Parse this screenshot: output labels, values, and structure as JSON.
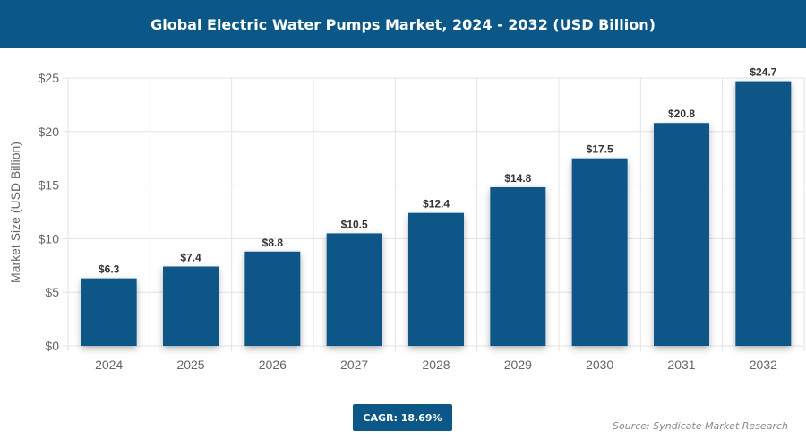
{
  "chart_data": {
    "type": "bar",
    "title": "Global Electric Water Pumps Market, 2024 - 2032 (USD Billion)",
    "xlabel": "",
    "ylabel": "Market Size (USD Billion)",
    "categories": [
      "2024",
      "2025",
      "2026",
      "2027",
      "2028",
      "2029",
      "2030",
      "2031",
      "2032"
    ],
    "values": [
      6.3,
      7.4,
      8.8,
      10.5,
      12.4,
      14.8,
      17.5,
      20.8,
      24.7
    ],
    "data_labels": [
      "$6.3",
      "$7.4",
      "$8.8",
      "$10.5",
      "$12.4",
      "$14.8",
      "$17.5",
      "$20.8",
      "$24.7"
    ],
    "ylim": [
      0,
      25
    ],
    "yticks": [
      0,
      5,
      10,
      15,
      20,
      25
    ],
    "ytick_labels": [
      "$0",
      "$5",
      "$10",
      "$15",
      "$20",
      "$25"
    ],
    "grid": true,
    "bar_color": "#0b5787"
  },
  "cagr_label": "CAGR: 18.69%",
  "source": "Source: Syndicate Market Research"
}
